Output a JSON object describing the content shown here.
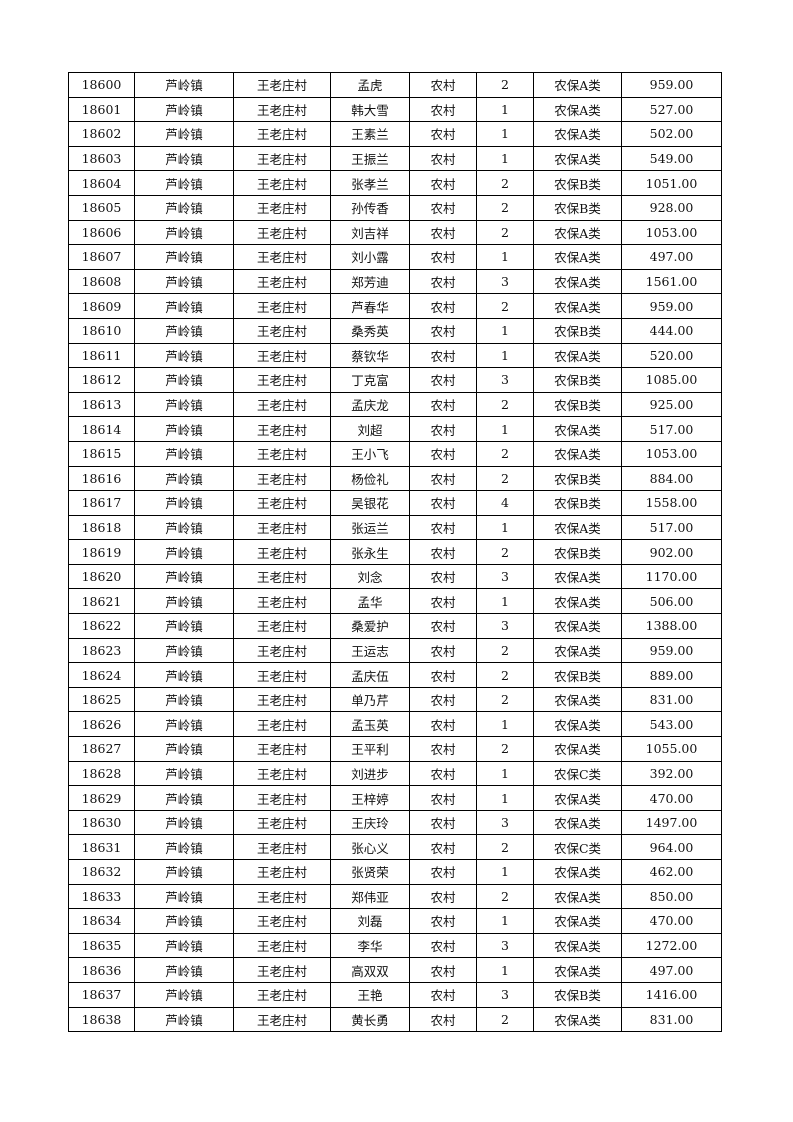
{
  "rows": [
    [
      "18600",
      "芦岭镇",
      "王老庄村",
      "孟虎",
      "农村",
      "2",
      "农保A类",
      "959.00"
    ],
    [
      "18601",
      "芦岭镇",
      "王老庄村",
      "韩大雪",
      "农村",
      "1",
      "农保A类",
      "527.00"
    ],
    [
      "18602",
      "芦岭镇",
      "王老庄村",
      "王素兰",
      "农村",
      "1",
      "农保A类",
      "502.00"
    ],
    [
      "18603",
      "芦岭镇",
      "王老庄村",
      "王振兰",
      "农村",
      "1",
      "农保A类",
      "549.00"
    ],
    [
      "18604",
      "芦岭镇",
      "王老庄村",
      "张孝兰",
      "农村",
      "2",
      "农保B类",
      "1051.00"
    ],
    [
      "18605",
      "芦岭镇",
      "王老庄村",
      "孙传香",
      "农村",
      "2",
      "农保B类",
      "928.00"
    ],
    [
      "18606",
      "芦岭镇",
      "王老庄村",
      "刘吉祥",
      "农村",
      "2",
      "农保A类",
      "1053.00"
    ],
    [
      "18607",
      "芦岭镇",
      "王老庄村",
      "刘小露",
      "农村",
      "1",
      "农保A类",
      "497.00"
    ],
    [
      "18608",
      "芦岭镇",
      "王老庄村",
      "郑芳迪",
      "农村",
      "3",
      "农保A类",
      "1561.00"
    ],
    [
      "18609",
      "芦岭镇",
      "王老庄村",
      "芦春华",
      "农村",
      "2",
      "农保A类",
      "959.00"
    ],
    [
      "18610",
      "芦岭镇",
      "王老庄村",
      "桑秀英",
      "农村",
      "1",
      "农保B类",
      "444.00"
    ],
    [
      "18611",
      "芦岭镇",
      "王老庄村",
      "蔡钦华",
      "农村",
      "1",
      "农保A类",
      "520.00"
    ],
    [
      "18612",
      "芦岭镇",
      "王老庄村",
      "丁克富",
      "农村",
      "3",
      "农保B类",
      "1085.00"
    ],
    [
      "18613",
      "芦岭镇",
      "王老庄村",
      "孟庆龙",
      "农村",
      "2",
      "农保B类",
      "925.00"
    ],
    [
      "18614",
      "芦岭镇",
      "王老庄村",
      "刘超",
      "农村",
      "1",
      "农保A类",
      "517.00"
    ],
    [
      "18615",
      "芦岭镇",
      "王老庄村",
      "王小飞",
      "农村",
      "2",
      "农保A类",
      "1053.00"
    ],
    [
      "18616",
      "芦岭镇",
      "王老庄村",
      "杨俭礼",
      "农村",
      "2",
      "农保B类",
      "884.00"
    ],
    [
      "18617",
      "芦岭镇",
      "王老庄村",
      "吴银花",
      "农村",
      "4",
      "农保B类",
      "1558.00"
    ],
    [
      "18618",
      "芦岭镇",
      "王老庄村",
      "张运兰",
      "农村",
      "1",
      "农保A类",
      "517.00"
    ],
    [
      "18619",
      "芦岭镇",
      "王老庄村",
      "张永生",
      "农村",
      "2",
      "农保B类",
      "902.00"
    ],
    [
      "18620",
      "芦岭镇",
      "王老庄村",
      "刘念",
      "农村",
      "3",
      "农保A类",
      "1170.00"
    ],
    [
      "18621",
      "芦岭镇",
      "王老庄村",
      "孟华",
      "农村",
      "1",
      "农保A类",
      "506.00"
    ],
    [
      "18622",
      "芦岭镇",
      "王老庄村",
      "桑爱护",
      "农村",
      "3",
      "农保A类",
      "1388.00"
    ],
    [
      "18623",
      "芦岭镇",
      "王老庄村",
      "王运志",
      "农村",
      "2",
      "农保A类",
      "959.00"
    ],
    [
      "18624",
      "芦岭镇",
      "王老庄村",
      "孟庆伍",
      "农村",
      "2",
      "农保B类",
      "889.00"
    ],
    [
      "18625",
      "芦岭镇",
      "王老庄村",
      "单乃芹",
      "农村",
      "2",
      "农保A类",
      "831.00"
    ],
    [
      "18626",
      "芦岭镇",
      "王老庄村",
      "孟玉英",
      "农村",
      "1",
      "农保A类",
      "543.00"
    ],
    [
      "18627",
      "芦岭镇",
      "王老庄村",
      "王平利",
      "农村",
      "2",
      "农保A类",
      "1055.00"
    ],
    [
      "18628",
      "芦岭镇",
      "王老庄村",
      "刘进步",
      "农村",
      "1",
      "农保C类",
      "392.00"
    ],
    [
      "18629",
      "芦岭镇",
      "王老庄村",
      "王梓婷",
      "农村",
      "1",
      "农保A类",
      "470.00"
    ],
    [
      "18630",
      "芦岭镇",
      "王老庄村",
      "王庆玲",
      "农村",
      "3",
      "农保A类",
      "1497.00"
    ],
    [
      "18631",
      "芦岭镇",
      "王老庄村",
      "张心义",
      "农村",
      "2",
      "农保C类",
      "964.00"
    ],
    [
      "18632",
      "芦岭镇",
      "王老庄村",
      "张贤荣",
      "农村",
      "1",
      "农保A类",
      "462.00"
    ],
    [
      "18633",
      "芦岭镇",
      "王老庄村",
      "郑伟亚",
      "农村",
      "2",
      "农保A类",
      "850.00"
    ],
    [
      "18634",
      "芦岭镇",
      "王老庄村",
      "刘磊",
      "农村",
      "1",
      "农保A类",
      "470.00"
    ],
    [
      "18635",
      "芦岭镇",
      "王老庄村",
      "李华",
      "农村",
      "3",
      "农保A类",
      "1272.00"
    ],
    [
      "18636",
      "芦岭镇",
      "王老庄村",
      "高双双",
      "农村",
      "1",
      "农保A类",
      "497.00"
    ],
    [
      "18637",
      "芦岭镇",
      "王老庄村",
      "王艳",
      "农村",
      "3",
      "农保B类",
      "1416.00"
    ],
    [
      "18638",
      "芦岭镇",
      "王老庄村",
      "黄长勇",
      "农村",
      "2",
      "农保A类",
      "831.00"
    ]
  ]
}
